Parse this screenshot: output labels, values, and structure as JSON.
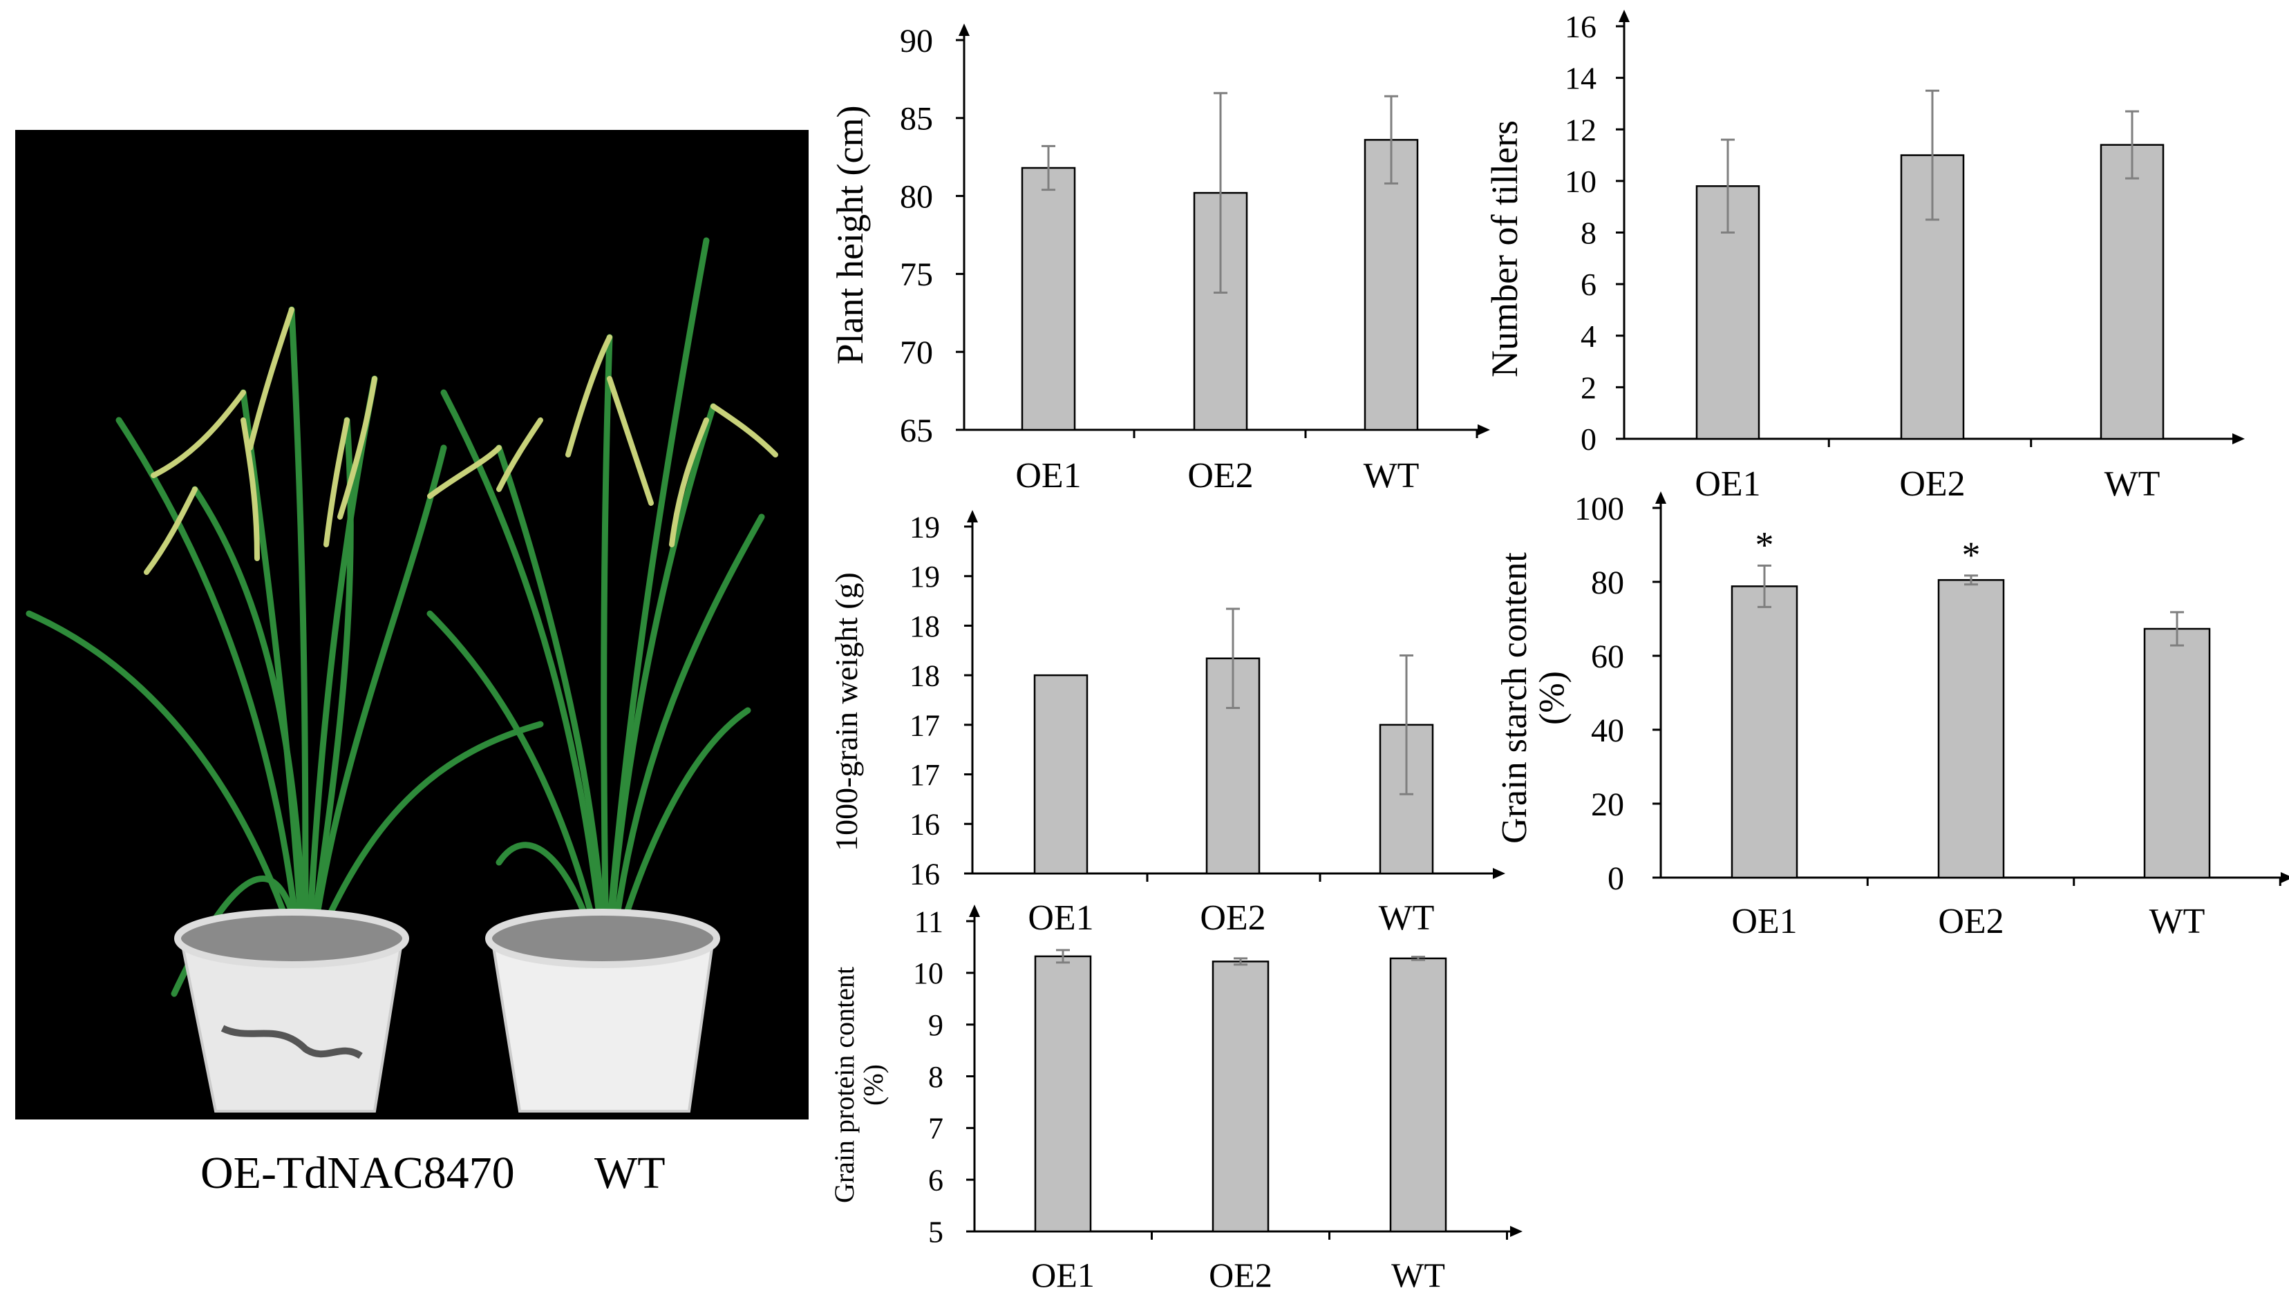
{
  "photo": {
    "caption_left": "OE-TdNAC8470",
    "caption_right": "WT"
  },
  "colors": {
    "bar_fill": "#c0c0c0",
    "bar_stroke": "#000000",
    "error_bar": "#7f7f7f",
    "background": "#ffffff",
    "photo_background": "#000000"
  },
  "chart_data": [
    {
      "type": "bar",
      "ylabel": "Plant height (cm)",
      "categories": [
        "OE1",
        "OE2",
        "WT"
      ],
      "values": [
        81.8,
        80.2,
        83.6
      ],
      "errors": [
        1.4,
        6.4,
        2.8
      ],
      "ylim": [
        65,
        90
      ],
      "yticks": [
        "65",
        "70",
        "75",
        "80",
        "85",
        "90"
      ],
      "grid": false,
      "annotations": [
        "",
        "",
        ""
      ]
    },
    {
      "type": "bar",
      "ylabel": "Number of tillers",
      "categories": [
        "OE1",
        "OE2",
        "WT"
      ],
      "values": [
        9.8,
        11.0,
        11.4
      ],
      "errors": [
        1.8,
        2.5,
        1.3
      ],
      "ylim": [
        0,
        16
      ],
      "yticks": [
        "0",
        "2",
        "4",
        "6",
        "8",
        "10",
        "12",
        "14",
        "16"
      ],
      "grid": false,
      "annotations": [
        "",
        "",
        ""
      ]
    },
    {
      "type": "bar",
      "ylabel": "1000-grain weight (g)",
      "categories": [
        "OE1",
        "OE2",
        "WT"
      ],
      "values": [
        18.0,
        18.17,
        17.5
      ],
      "errors": [
        0.0,
        0.5,
        0.7
      ],
      "ylim": [
        16,
        19.5
      ],
      "yticks": [
        "16",
        "16",
        "17",
        "17",
        "18",
        "18",
        "19",
        "19"
      ],
      "grid": false,
      "annotations": [
        "",
        "",
        ""
      ]
    },
    {
      "type": "bar",
      "ylabel": "Grain starch content (%)",
      "categories": [
        "OE1",
        "OE2",
        "WT"
      ],
      "values": [
        78.8,
        80.5,
        67.3
      ],
      "errors": [
        5.6,
        1.2,
        4.5
      ],
      "ylim": [
        0,
        100
      ],
      "yticks": [
        "0",
        "20",
        "40",
        "60",
        "80",
        "100"
      ],
      "grid": false,
      "annotations": [
        "*",
        "*",
        ""
      ]
    },
    {
      "type": "bar",
      "ylabel": "Grain protein content (%)",
      "categories": [
        "OE1",
        "OE2",
        "WT"
      ],
      "values": [
        10.32,
        10.22,
        10.28
      ],
      "errors": [
        0.12,
        0.06,
        0.03
      ],
      "ylim": [
        5,
        11
      ],
      "yticks": [
        "5",
        "6",
        "7",
        "8",
        "9",
        "10",
        "11"
      ],
      "grid": false,
      "annotations": [
        "",
        "",
        ""
      ]
    }
  ]
}
